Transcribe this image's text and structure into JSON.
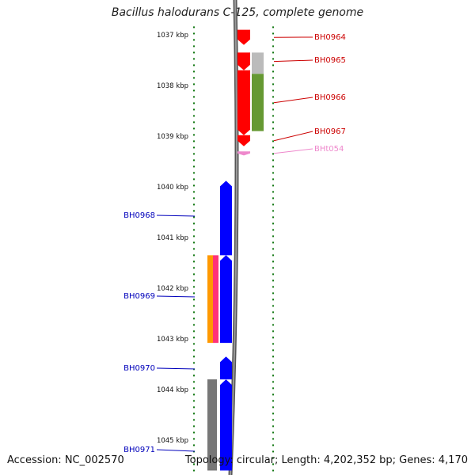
{
  "title": "Bacillus halodurans C-125, complete genome",
  "accession": "Accession: NC_002570",
  "topology": "Topology: circular; Length: 4,202,352 bp; Genes: 4,170",
  "scale": {
    "start_kbp": 1036.9,
    "end_kbp": 1045.6
  },
  "kbp_labels": [
    "1037 kbp",
    "1038 kbp",
    "1039 kbp",
    "1040 kbp",
    "1041 kbp",
    "1042 kbp",
    "1043 kbp",
    "1044 kbp",
    "1045 kbp"
  ],
  "forward_genes": [
    {
      "label": "BH0964",
      "start_kbp": 1036.9,
      "end_kbp": 1037.2,
      "color": "#ff0000"
    },
    {
      "label": "BH0965",
      "start_kbp": 1037.35,
      "end_kbp": 1037.7,
      "color": "#ff0000"
    },
    {
      "label": "BH0966",
      "start_kbp": 1037.7,
      "end_kbp": 1038.98,
      "color": "#ff0000"
    },
    {
      "label": "BH0967",
      "start_kbp": 1038.98,
      "end_kbp": 1039.2,
      "color": "#ff0000"
    },
    {
      "label": "BHt054",
      "start_kbp": 1039.3,
      "end_kbp": 1039.38,
      "color": "#ee88cc"
    }
  ],
  "forward_features": [
    {
      "start_kbp": 1037.35,
      "end_kbp": 1037.77,
      "color": "#bbbbbb"
    },
    {
      "start_kbp": 1037.77,
      "end_kbp": 1038.9,
      "color": "#669933"
    }
  ],
  "reverse_genes": [
    {
      "label": "BH0968",
      "start_kbp": 1039.88,
      "end_kbp": 1041.35,
      "color": "#0000ff"
    },
    {
      "label": "BH0969",
      "start_kbp": 1041.35,
      "end_kbp": 1043.08,
      "color": "#0000ff"
    },
    {
      "label": "BH0970",
      "start_kbp": 1043.35,
      "end_kbp": 1043.8,
      "color": "#0000ff"
    },
    {
      "label": "BH0971",
      "start_kbp": 1043.8,
      "end_kbp": 1045.6,
      "color": "#0000ff"
    }
  ],
  "reverse_features": [
    {
      "start_kbp": 1041.35,
      "end_kbp": 1043.08,
      "color": "#ff9900"
    },
    {
      "start_kbp": 1041.35,
      "end_kbp": 1043.08,
      "color": "#ff3377"
    },
    {
      "start_kbp": 1043.8,
      "end_kbp": 1045.6,
      "color": "#777777"
    }
  ],
  "colors": {
    "tick": "#117711",
    "backbone": "#777777",
    "forward_label": "#cc0000",
    "reverse_label": "#0000bb",
    "trna_label": "#ee88cc"
  }
}
